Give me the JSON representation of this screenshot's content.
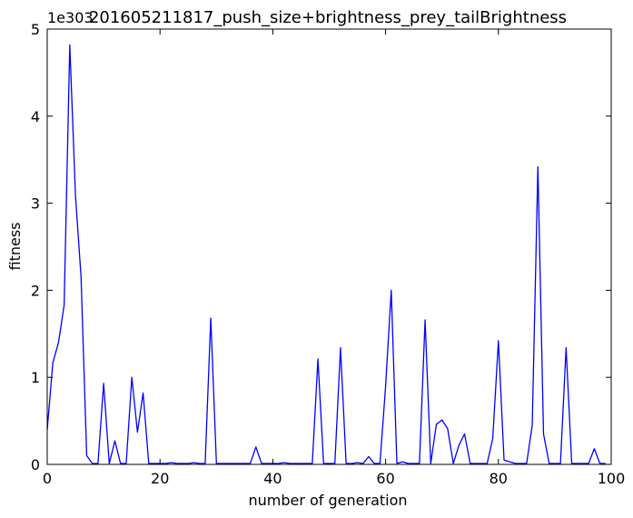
{
  "chart_data": {
    "type": "line",
    "title": "201605211817_push_size+brightness_prey_tailBrightness",
    "xlabel": "number of generation",
    "ylabel": "fitness",
    "y_offset_label": "1e303",
    "xlim": [
      0,
      100
    ],
    "ylim": [
      0,
      5
    ],
    "xticks": [
      0,
      20,
      40,
      60,
      80,
      100
    ],
    "yticks": [
      0,
      1,
      2,
      3,
      4,
      5
    ],
    "grid": false,
    "line_color": "#0000ff",
    "series": [
      {
        "x": [
          0,
          1,
          2,
          3,
          4,
          5,
          6,
          7,
          8,
          9,
          10,
          11,
          12,
          13,
          14,
          15,
          16,
          17,
          18,
          19,
          20,
          21,
          22,
          23,
          24,
          25,
          26,
          27,
          28,
          29,
          30,
          31,
          32,
          33,
          34,
          35,
          36,
          37,
          38,
          39,
          40,
          41,
          42,
          43,
          44,
          45,
          46,
          47,
          48,
          49,
          50,
          51,
          52,
          53,
          54,
          55,
          56,
          57,
          58,
          59,
          60,
          61,
          62,
          63,
          64,
          65,
          66,
          67,
          68,
          69,
          70,
          71,
          72,
          73,
          74,
          75,
          76,
          77,
          78,
          79,
          80,
          81,
          82,
          83,
          84,
          85,
          86,
          87,
          88,
          89,
          90,
          91,
          92,
          93,
          94,
          95,
          96,
          97,
          98,
          99
        ],
        "y": [
          0.4,
          1.17,
          1.4,
          1.83,
          4.82,
          3.1,
          2.15,
          0.1,
          0.01,
          0.01,
          0.93,
          0.01,
          0.27,
          0.01,
          0.01,
          1.0,
          0.37,
          0.82,
          0.01,
          0.01,
          0.01,
          0.01,
          0.02,
          0.01,
          0.01,
          0.01,
          0.02,
          0.01,
          0.01,
          1.68,
          0.01,
          0.01,
          0.01,
          0.01,
          0.01,
          0.01,
          0.01,
          0.2,
          0.01,
          0.01,
          0.01,
          0.01,
          0.02,
          0.01,
          0.01,
          0.01,
          0.01,
          0.01,
          1.21,
          0.01,
          0.01,
          0.01,
          1.34,
          0.01,
          0.01,
          0.02,
          0.01,
          0.09,
          0.01,
          0.01,
          0.9,
          2.0,
          0.01,
          0.03,
          0.01,
          0.01,
          0.01,
          1.66,
          0.01,
          0.46,
          0.51,
          0.41,
          0.01,
          0.22,
          0.35,
          0.01,
          0.01,
          0.01,
          0.01,
          0.3,
          1.42,
          0.05,
          0.03,
          0.01,
          0.01,
          0.01,
          0.45,
          3.42,
          0.35,
          0.01,
          0.01,
          0.01,
          1.34,
          0.01,
          0.01,
          0.01,
          0.01,
          0.18,
          0.01,
          0.01
        ]
      }
    ]
  }
}
